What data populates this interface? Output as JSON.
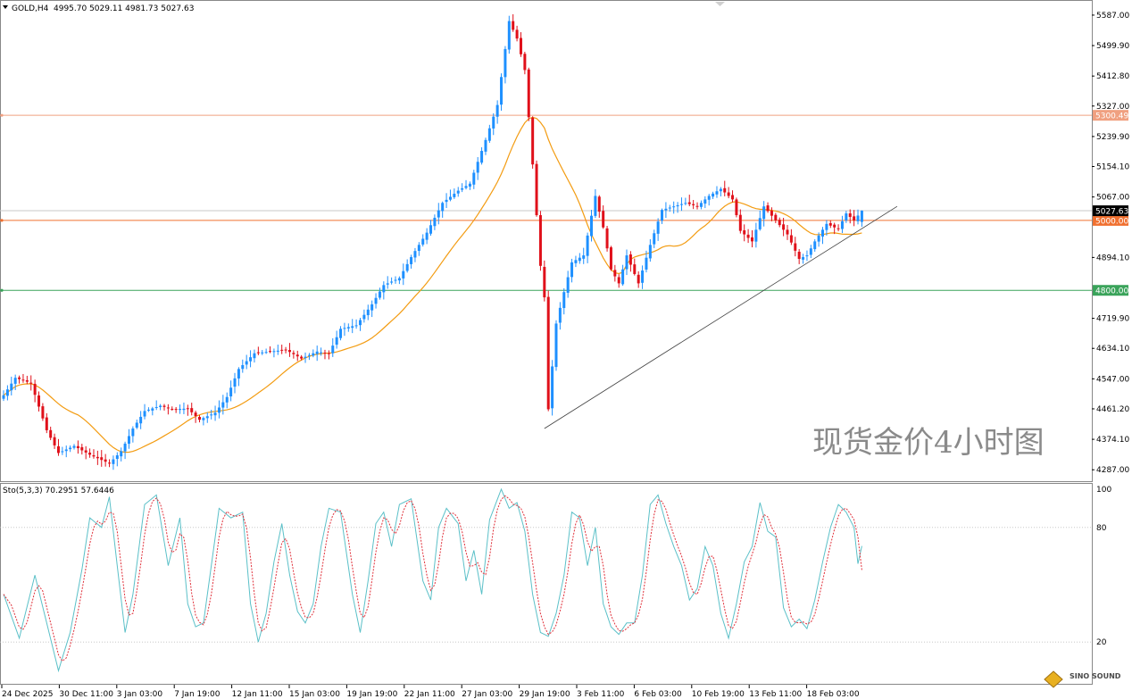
{
  "symbol_info": "GOLD,H4",
  "ohlc_info": "4995.70 5029.11 4981.73 5027.63",
  "indicator_info": "Sto(5,3,3) 70.2951 57.6446",
  "watermark": "现货金价4小时图",
  "logo_text": "SINO SOUND",
  "colors": {
    "bull": "#1e90ff",
    "bear": "#e0101a",
    "ma": "#f39c12",
    "stoch_main": "#5bc0c8",
    "stoch_signal": "#e0303a",
    "line_5300": "#f0a080",
    "line_5000": "#f07030",
    "line_4800": "#3aa35a",
    "trendline": "#404040"
  },
  "chart_data": {
    "type": "candlestick",
    "symbol": "GOLD",
    "timeframe": "H4",
    "last_bar": {
      "open": 4995.7,
      "high": 5029.11,
      "low": 4981.73,
      "close": 5027.63
    },
    "price_axis_ticks": [
      "5587.00",
      "5499.90",
      "5412.80",
      "5327.00",
      "5239.90",
      "5154.10",
      "5067.00",
      "4894.10",
      "4719.90",
      "4634.10",
      "4547.00",
      "4461.20",
      "4374.10",
      "4287.00"
    ],
    "price_ylim": [
      4262,
      5620
    ],
    "x_tick_labels": [
      "24 Dec 2025",
      "30 Dec 11:00",
      "3 Jan 03:00",
      "7 Jan 19:00",
      "12 Jan 11:00",
      "15 Jan 03:00",
      "19 Jan 19:00",
      "22 Jan 11:00",
      "27 Jan 03:00",
      "29 Jan 19:00",
      "3 Feb 11:00",
      "6 Feb 03:00",
      "10 Feb 19:00",
      "13 Feb 11:00",
      "18 Feb 03:00"
    ],
    "horizontal_levels": [
      {
        "label": "5300.49",
        "value": 5300.49,
        "color_key": "line_5300"
      },
      {
        "label": "5000.00",
        "value": 5000.0,
        "color_key": "line_5000"
      },
      {
        "label": "4800.00",
        "value": 4800.0,
        "color_key": "line_4800"
      }
    ],
    "current_price_label": "5027.63",
    "trendline": {
      "from": {
        "bar": 138,
        "price": 4405
      },
      "to": {
        "bar": 228,
        "price": 5040
      }
    },
    "price_keypoints": [
      [
        0,
        4500
      ],
      [
        3,
        4550
      ],
      [
        7,
        4535
      ],
      [
        11,
        4400
      ],
      [
        14,
        4335
      ],
      [
        18,
        4355
      ],
      [
        22,
        4330
      ],
      [
        27,
        4305
      ],
      [
        30,
        4340
      ],
      [
        33,
        4405
      ],
      [
        36,
        4455
      ],
      [
        40,
        4470
      ],
      [
        43,
        4460
      ],
      [
        47,
        4462
      ],
      [
        50,
        4430
      ],
      [
        54,
        4450
      ],
      [
        57,
        4495
      ],
      [
        60,
        4575
      ],
      [
        64,
        4620
      ],
      [
        68,
        4625
      ],
      [
        72,
        4630
      ],
      [
        76,
        4605
      ],
      [
        80,
        4625
      ],
      [
        83,
        4618
      ],
      [
        86,
        4690
      ],
      [
        90,
        4700
      ],
      [
        94,
        4760
      ],
      [
        97,
        4815
      ],
      [
        101,
        4835
      ],
      [
        104,
        4895
      ],
      [
        108,
        4965
      ],
      [
        112,
        5050
      ],
      [
        116,
        5085
      ],
      [
        119,
        5105
      ],
      [
        123,
        5230
      ],
      [
        126,
        5330
      ],
      [
        129,
        5570
      ],
      [
        131,
        5520
      ],
      [
        133,
        5430
      ],
      [
        135,
        5160
      ],
      [
        137,
        4870
      ],
      [
        138,
        4780
      ],
      [
        139,
        4460
      ],
      [
        141,
        4705
      ],
      [
        143,
        4795
      ],
      [
        145,
        4880
      ],
      [
        148,
        4900
      ],
      [
        151,
        5070
      ],
      [
        153,
        4980
      ],
      [
        155,
        4860
      ],
      [
        157,
        4820
      ],
      [
        159,
        4900
      ],
      [
        162,
        4820
      ],
      [
        165,
        4930
      ],
      [
        168,
        5030
      ],
      [
        171,
        5040
      ],
      [
        174,
        5050
      ],
      [
        177,
        5040
      ],
      [
        180,
        5070
      ],
      [
        183,
        5090
      ],
      [
        186,
        5060
      ],
      [
        188,
        4970
      ],
      [
        191,
        4940
      ],
      [
        194,
        5040
      ],
      [
        197,
        5000
      ],
      [
        200,
        4960
      ],
      [
        203,
        4890
      ],
      [
        205,
        4900
      ],
      [
        207,
        4940
      ],
      [
        210,
        4990
      ],
      [
        213,
        4975
      ],
      [
        215,
        5020
      ],
      [
        217,
        5000
      ],
      [
        219,
        5027.63
      ]
    ],
    "stochastic": {
      "params": "5,3,3",
      "main": 70.2951,
      "signal": 57.6446,
      "levels": [
        80,
        20
      ],
      "y_ticks": [
        "100",
        "80",
        "20"
      ],
      "ylim": [
        0,
        100
      ],
      "main_keypoints": [
        [
          0,
          45
        ],
        [
          4,
          22
        ],
        [
          8,
          55
        ],
        [
          11,
          30
        ],
        [
          14,
          5
        ],
        [
          17,
          25
        ],
        [
          20,
          58
        ],
        [
          22,
          85
        ],
        [
          25,
          80
        ],
        [
          27,
          96
        ],
        [
          29,
          60
        ],
        [
          31,
          25
        ],
        [
          33,
          45
        ],
        [
          36,
          92
        ],
        [
          39,
          97
        ],
        [
          42,
          60
        ],
        [
          45,
          85
        ],
        [
          47,
          40
        ],
        [
          49,
          28
        ],
        [
          51,
          30
        ],
        [
          53,
          60
        ],
        [
          55,
          90
        ],
        [
          58,
          85
        ],
        [
          61,
          88
        ],
        [
          63,
          40
        ],
        [
          65,
          20
        ],
        [
          67,
          35
        ],
        [
          69,
          62
        ],
        [
          71,
          82
        ],
        [
          73,
          55
        ],
        [
          75,
          36
        ],
        [
          77,
          30
        ],
        [
          79,
          40
        ],
        [
          81,
          70
        ],
        [
          83,
          90
        ],
        [
          86,
          88
        ],
        [
          89,
          45
        ],
        [
          91,
          25
        ],
        [
          93,
          52
        ],
        [
          95,
          82
        ],
        [
          97,
          88
        ],
        [
          99,
          70
        ],
        [
          101,
          92
        ],
        [
          104,
          95
        ],
        [
          107,
          52
        ],
        [
          109,
          42
        ],
        [
          111,
          80
        ],
        [
          113,
          90
        ],
        [
          116,
          82
        ],
        [
          118,
          52
        ],
        [
          120,
          68
        ],
        [
          122,
          45
        ],
        [
          124,
          84
        ],
        [
          127,
          100
        ],
        [
          129,
          90
        ],
        [
          131,
          93
        ],
        [
          133,
          78
        ],
        [
          135,
          45
        ],
        [
          137,
          25
        ],
        [
          139,
          23
        ],
        [
          141,
          35
        ],
        [
          143,
          55
        ],
        [
          145,
          88
        ],
        [
          147,
          85
        ],
        [
          149,
          60
        ],
        [
          151,
          80
        ],
        [
          153,
          40
        ],
        [
          155,
          28
        ],
        [
          157,
          24
        ],
        [
          159,
          30
        ],
        [
          161,
          30
        ],
        [
          163,
          55
        ],
        [
          165,
          92
        ],
        [
          167,
          97
        ],
        [
          169,
          82
        ],
        [
          171,
          70
        ],
        [
          173,
          60
        ],
        [
          175,
          42
        ],
        [
          177,
          48
        ],
        [
          179,
          70
        ],
        [
          181,
          60
        ],
        [
          183,
          35
        ],
        [
          185,
          22
        ],
        [
          187,
          40
        ],
        [
          189,
          62
        ],
        [
          191,
          70
        ],
        [
          193,
          93
        ],
        [
          195,
          78
        ],
        [
          197,
          75
        ],
        [
          199,
          38
        ],
        [
          201,
          28
        ],
        [
          203,
          32
        ],
        [
          205,
          27
        ],
        [
          207,
          42
        ],
        [
          209,
          62
        ],
        [
          211,
          80
        ],
        [
          213,
          92
        ],
        [
          215,
          88
        ],
        [
          217,
          80
        ],
        [
          219,
          42
        ],
        [
          220,
          70
        ]
      ]
    }
  }
}
